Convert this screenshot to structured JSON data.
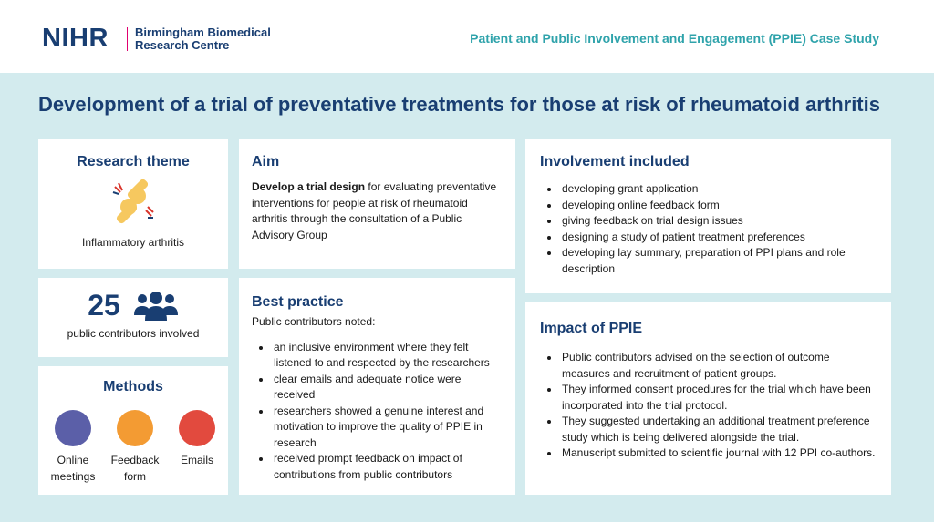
{
  "header": {
    "logo": "NIHR",
    "centre": [
      "Birmingham Biomedical",
      "Research Centre"
    ],
    "subtitle": "Patient and Public Involvement and Engagement (PPIE) Case Study"
  },
  "title": "Development of a trial of preventative treatments for those at risk of rheumatoid arthritis",
  "research_theme": {
    "heading": "Research theme",
    "label": "Inflammatory arthritis"
  },
  "contributors": {
    "count": 25,
    "label": "public contributors involved"
  },
  "methods": {
    "heading": "Methods",
    "items": [
      "Online meetings",
      "Feedback form",
      "Emails"
    ]
  },
  "aim": {
    "heading": "Aim",
    "emphasis": "Develop a trial design",
    "text": " for evaluating preventative interventions for people at risk of rheumatoid arthritis through the consultation of a Public Advisory Group"
  },
  "best_practice": {
    "heading": "Best practice",
    "intro": "Public contributors noted:",
    "items": [
      "an inclusive environment where they felt listened to and respected by the researchers",
      "clear emails and adequate notice were received",
      "researchers showed a genuine interest and motivation to improve the quality of PPIE in research",
      "received prompt feedback on impact of contributions from public contributors"
    ]
  },
  "involvement": {
    "heading": "Involvement included",
    "items": [
      "developing grant application",
      "developing online feedback form",
      "giving feedback on trial design issues",
      "designing a study of patient treatment preferences",
      "developing lay summary, preparation of PPI plans and role description"
    ]
  },
  "impact": {
    "heading": "Impact of PPIE",
    "items": [
      "Public contributors advised on the selection of outcome measures and recruitment of patient groups.",
      "They informed consent procedures for the trial which have been incorporated into the trial protocol.",
      "They suggested undertaking an additional treatment preference study which is being delivered alongside the trial.",
      "Manuscript submitted to scientific journal with 12 PPI co-authors."
    ]
  }
}
